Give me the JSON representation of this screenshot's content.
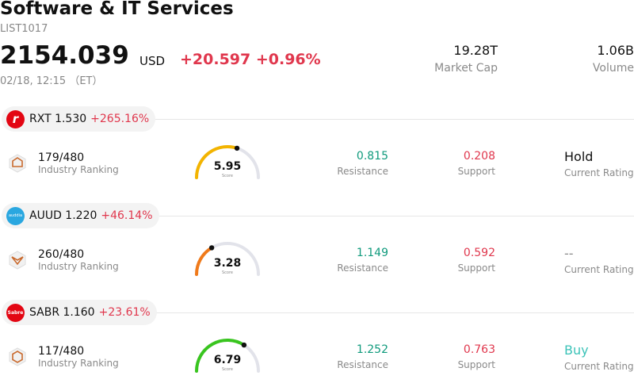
{
  "header": {
    "title": "Software & IT Services",
    "code": "LIST1017",
    "price": "2154.039",
    "currency": "USD",
    "change": "+20.597 +0.96%",
    "time": "02/18, 12:15 （ET）",
    "market_cap_value": "19.28T",
    "market_cap_label": "Market Cap",
    "volume_value": "1.06B",
    "volume_label": "Volume"
  },
  "colors": {
    "up": "#e0374d",
    "resistance": "#0f9a7c",
    "support": "#e0374d",
    "buy": "#3cc3b8"
  },
  "stocks": [
    {
      "symbol": "RXT 1.530",
      "percent": "+265.16%",
      "logo_text": "r",
      "logo_color": "#e30613",
      "rank": "179/480",
      "rank_label": "Industry Ranking",
      "score": "5.95",
      "score_label": "Score",
      "score_fraction": 0.6,
      "gauge_color": "#f3b400",
      "resistance": "0.815",
      "resistance_label": "Resistance",
      "support": "0.208",
      "support_label": "Support",
      "rating": "Hold",
      "rating_label": "Current Rating",
      "rating_color": "#111111"
    },
    {
      "symbol": "AUUD 1.220",
      "percent": "+46.14%",
      "logo_text": "auddia",
      "logo_color": "#2aa7e0",
      "rank": "260/480",
      "rank_label": "Industry Ranking",
      "score": "3.28",
      "score_label": "Score",
      "score_fraction": 0.33,
      "gauge_color": "#f07a1a",
      "resistance": "1.149",
      "resistance_label": "Resistance",
      "support": "0.592",
      "support_label": "Support",
      "rating": "--",
      "rating_label": "Current Rating",
      "rating_color": "#8a8a8a"
    },
    {
      "symbol": "SABR 1.160",
      "percent": "+23.61%",
      "logo_text": "Sabre",
      "logo_color": "#e30613",
      "rank": "117/480",
      "rank_label": "Industry Ranking",
      "score": "6.79",
      "score_label": "Score",
      "score_fraction": 0.68,
      "gauge_color": "#39c51f",
      "resistance": "1.252",
      "resistance_label": "Resistance",
      "support": "0.763",
      "support_label": "Support",
      "rating": "Buy",
      "rating_label": "Current Rating",
      "rating_color": "#3cc3b8"
    }
  ]
}
